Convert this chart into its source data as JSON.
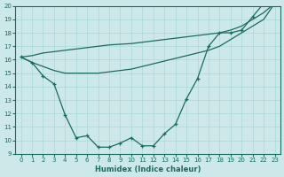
{
  "bg_color": "#cde8e8",
  "line_color": "#1a6b60",
  "xlabel": "Humidex (Indice chaleur)",
  "xmin": 0,
  "xmax": 23,
  "ymin": 9,
  "ymax": 20,
  "x_data": [
    0,
    1,
    2,
    3,
    4,
    5,
    6,
    7,
    8,
    9,
    10,
    11,
    12,
    13,
    14,
    15,
    16,
    17,
    18,
    19,
    20,
    21,
    22,
    23
  ],
  "curve": [
    16.2,
    15.8,
    14.8,
    14.2,
    11.9,
    10.2,
    10.35,
    9.5,
    9.5,
    9.8,
    10.2,
    9.6,
    9.6,
    10.5,
    11.2,
    13.1,
    14.6,
    17.0,
    18.0,
    18.0,
    18.2,
    19.2,
    20.2,
    20.2
  ],
  "upper_line": [
    16.2,
    16.3,
    16.5,
    16.6,
    16.7,
    16.8,
    16.9,
    17.0,
    17.1,
    17.15,
    17.2,
    17.3,
    17.4,
    17.5,
    17.6,
    17.7,
    17.8,
    17.9,
    18.0,
    18.2,
    18.5,
    19.0,
    19.5,
    20.2
  ],
  "lower_line": [
    16.2,
    15.8,
    15.5,
    15.2,
    15.0,
    15.0,
    15.0,
    15.0,
    15.1,
    15.2,
    15.3,
    15.5,
    15.7,
    15.9,
    16.1,
    16.3,
    16.5,
    16.7,
    17.0,
    17.5,
    18.0,
    18.5,
    19.0,
    20.2
  ]
}
